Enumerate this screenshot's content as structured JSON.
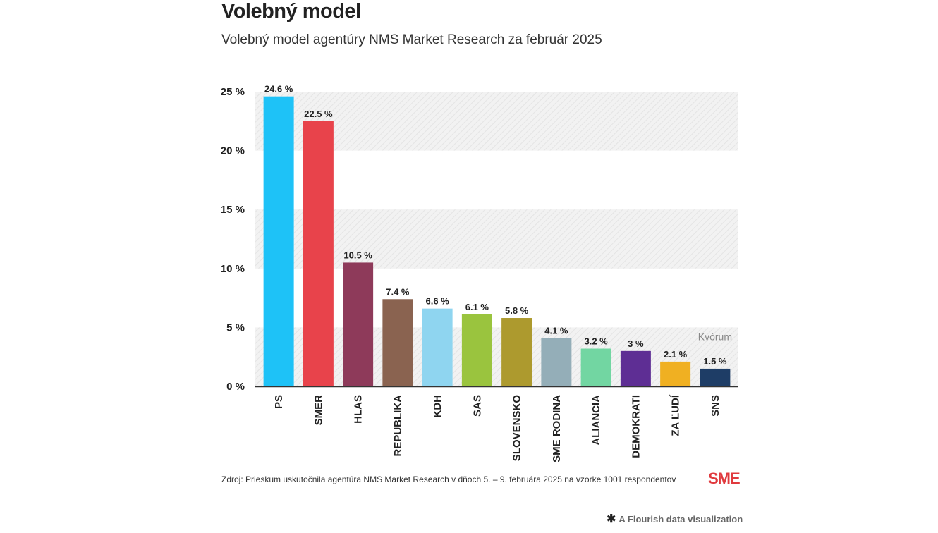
{
  "header": {
    "title": "Volebný model",
    "subtitle": "Volebný model agentúry NMS Market Research za február 2025"
  },
  "footer": {
    "source": "Zdroj: Prieskum uskutočnila agentúra NMS Market Research v dňoch 5. – 9. februára 2025 na vzorke 1001 respondentov",
    "logo": "SME",
    "flourish_label": "A Flourish data visualization",
    "flourish_icon": "flourish-star-icon"
  },
  "chart_data": {
    "type": "bar",
    "categories": [
      "PS",
      "SMER",
      "HLAS",
      "REPUBLIKA",
      "KDH",
      "SAS",
      "SLOVENSKO",
      "SME RODINA",
      "ALIANCIA",
      "DEMOKRATI",
      "ZA ĽUDÍ",
      "SNS"
    ],
    "values": [
      24.6,
      22.5,
      10.5,
      7.4,
      6.6,
      6.1,
      5.8,
      4.1,
      3.2,
      3,
      2.1,
      1.5
    ],
    "value_labels": [
      "24.6 %",
      "22.5 %",
      "10.5 %",
      "7.4 %",
      "6.6 %",
      "6.1 %",
      "5.8 %",
      "4.1 %",
      "3.2 %",
      "3 %",
      "2.1 %",
      "1.5 %"
    ],
    "colors": [
      "#1ec2f7",
      "#e8434b",
      "#8e3a5a",
      "#8a6350",
      "#8fd5f0",
      "#9ac43e",
      "#ad9a2e",
      "#94aeb8",
      "#72d6a2",
      "#5e2e94",
      "#f0b022",
      "#1e3d66"
    ],
    "y_ticks": [
      0,
      5,
      10,
      15,
      20,
      25
    ],
    "y_tick_labels": [
      "0 %",
      "5 %",
      "10 %",
      "15 %",
      "20 %",
      "25 %"
    ],
    "ylim": [
      0,
      25
    ],
    "threshold": {
      "value": 5,
      "label": "Kvórum"
    },
    "grid": "alternating hatched bands",
    "xlabel": "",
    "ylabel": "",
    "title": "Volebný model"
  }
}
